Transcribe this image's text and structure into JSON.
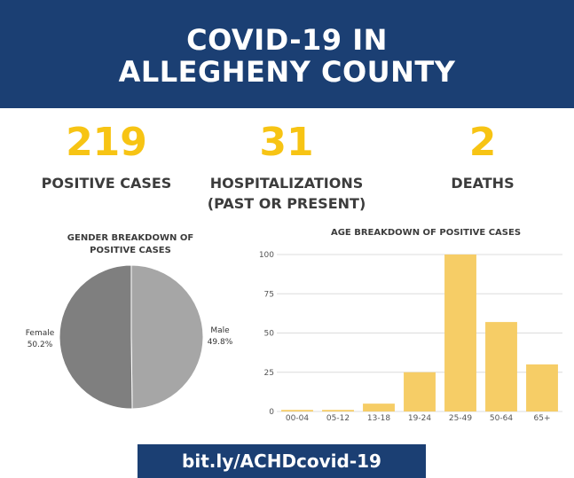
{
  "header": {
    "line1": "COVID-19 IN",
    "line2": "ALLEGHENY COUNTY"
  },
  "stats": {
    "positive_cases": {
      "value": "219",
      "label": "POSITIVE CASES"
    },
    "hospitalizations": {
      "value": "31",
      "label_line1": "HOSPITALIZATIONS",
      "label_line2": "(PAST OR PRESENT)"
    },
    "deaths": {
      "value": "2",
      "label": "DEATHS"
    }
  },
  "gender_chart_title": {
    "line1": "GENDER BREAKDOWN OF",
    "line2": "POSITIVE CASES"
  },
  "age_chart_title": "AGE BREAKDOWN OF POSITIVE CASES",
  "link_text": "bit.ly/ACHDcovid-19",
  "colors": {
    "header_bg": "#1b3f73",
    "stat_number": "#f7c414",
    "bar": "#f6cd66",
    "pie_female": "#7f7f7f",
    "pie_male": "#a6a6a6"
  },
  "chart_data": [
    {
      "type": "pie",
      "title": "GENDER BREAKDOWN OF POSITIVE CASES",
      "slices": [
        {
          "name": "Male",
          "label": "49.8%",
          "value": 49.8
        },
        {
          "name": "Female",
          "label": "50.2%",
          "value": 50.2
        }
      ]
    },
    {
      "type": "bar",
      "title": "AGE BREAKDOWN OF POSITIVE CASES",
      "categories": [
        "00-04",
        "05-12",
        "13-18",
        "19-24",
        "25-49",
        "50-64",
        "65+"
      ],
      "values": [
        1,
        1,
        5,
        25,
        100,
        57,
        30
      ],
      "ylim": [
        0,
        100
      ],
      "yticks": [
        "0",
        "25",
        "50",
        "75",
        "100"
      ],
      "grid": true
    }
  ]
}
